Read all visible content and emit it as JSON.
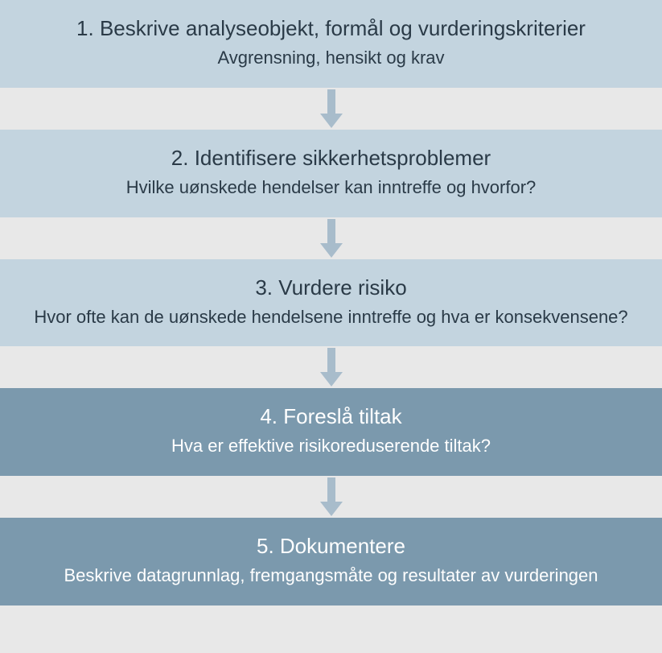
{
  "diagram": {
    "type": "flowchart",
    "background_color": "#e8e8e8",
    "arrow_color": "#a8bccb",
    "steps": [
      {
        "title": "1. Beskrive analyseobjekt, formål og vurderingskriterier",
        "subtitle": "Avgrensning, hensikt og krav",
        "bg_color": "#c3d4df",
        "text_color": "#2a3a47"
      },
      {
        "title": "2. Identifisere sikkerhetsproblemer",
        "subtitle": "Hvilke uønskede hendelser kan inntreffe og hvorfor?",
        "bg_color": "#c3d4df",
        "text_color": "#2a3a47"
      },
      {
        "title": "3. Vurdere risiko",
        "subtitle": "Hvor ofte kan de uønskede hendelsene inntreffe og hva er konsekvensene?",
        "bg_color": "#c3d4df",
        "text_color": "#2a3a47"
      },
      {
        "title": "4. Foreslå tiltak",
        "subtitle": "Hva er effektive risikoreduserende tiltak?",
        "bg_color": "#7b99ad",
        "text_color": "#ffffff"
      },
      {
        "title": "5. Dokumentere",
        "subtitle": "Beskrive datagrunnlag, fremgangsmåte og resultater av vurderingen",
        "bg_color": "#7b99ad",
        "text_color": "#ffffff"
      }
    ]
  }
}
